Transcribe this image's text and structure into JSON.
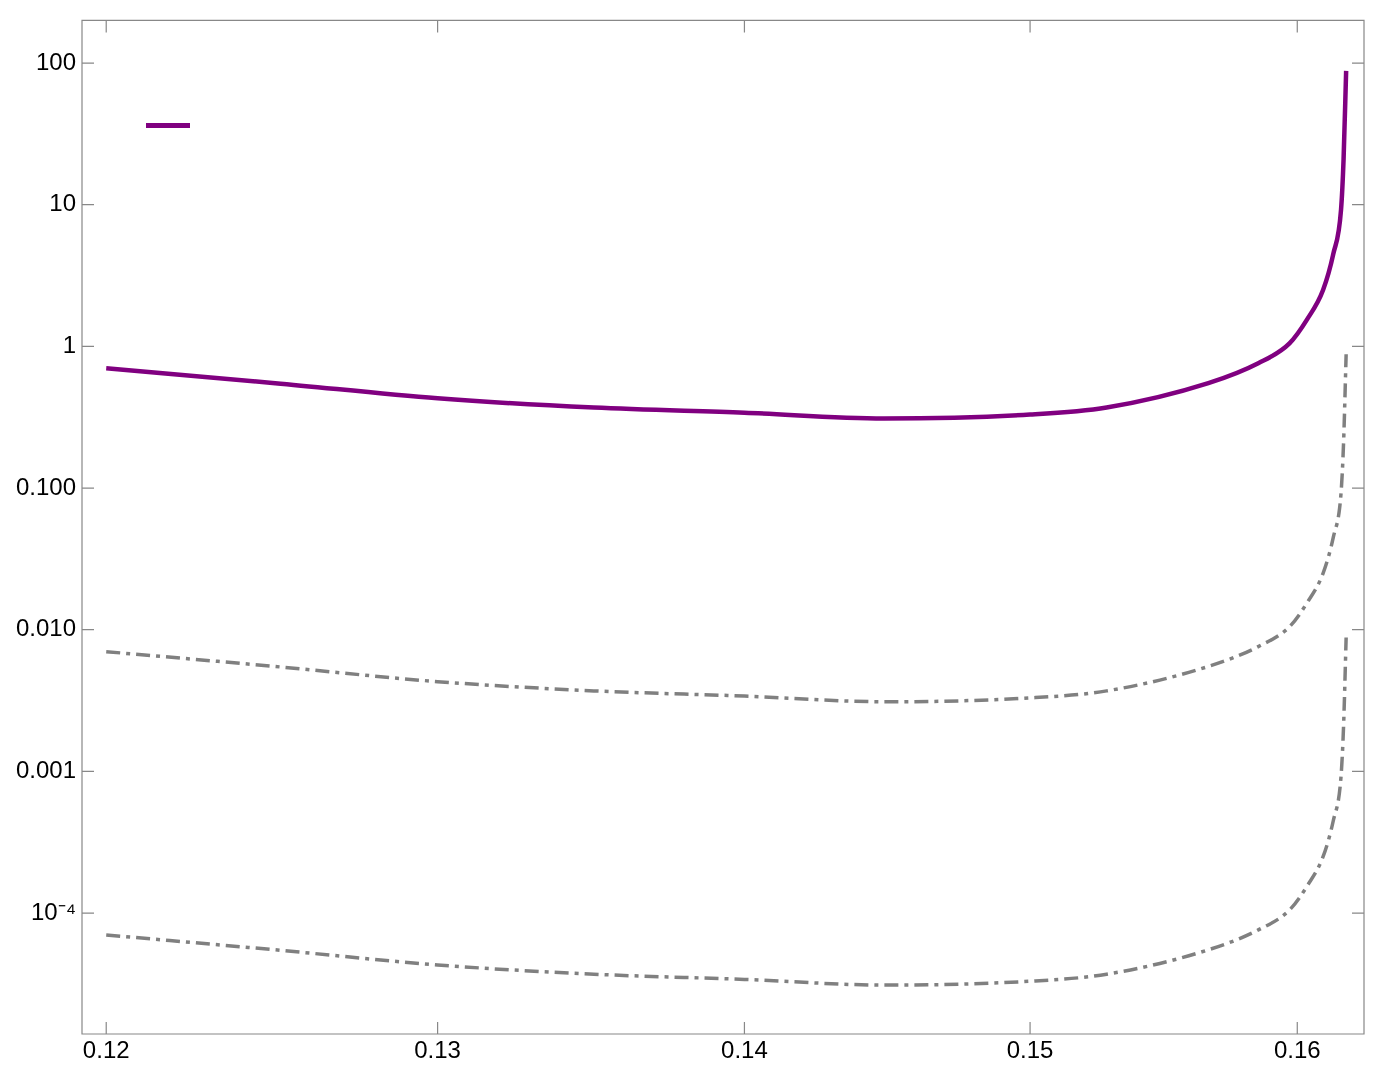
{
  "chart_data": {
    "type": "line",
    "log": "xy",
    "xlim": [
      0.1193,
      0.1626
    ],
    "xticks": [
      0.12,
      0.13,
      0.14,
      0.15,
      0.16
    ],
    "ylim": [
      1.4e-05,
      200
    ],
    "yticks": [
      100,
      10,
      1,
      {
        "value": 0.1,
        "label": "0.100"
      },
      {
        "value": 0.01,
        "label": "0.010"
      },
      {
        "value": 0.001,
        "label": "0.001"
      },
      {
        "value": 0.0001,
        "label": "10⁻⁴"
      }
    ],
    "grid": false,
    "series": [
      {
        "color": "#800080",
        "line_style": "solid",
        "x": [
          0.12,
          0.125,
          0.13,
          0.135,
          0.14,
          0.1448,
          0.15,
          0.1528,
          0.1566,
          0.1585,
          0.1597,
          0.1604,
          0.161,
          0.1614,
          0.1617,
          0.1618,
          0.1619
        ],
        "values": [
          0.7,
          0.55,
          0.43,
          0.37,
          0.34,
          0.31,
          0.33,
          0.37,
          0.55,
          0.76,
          1.05,
          1.57,
          2.5,
          4.5,
          9.2,
          21,
          88
        ]
      },
      {
        "color": "#808080",
        "line_style": "dashed",
        "x": [
          0.12,
          0.125,
          0.13,
          0.135,
          0.14,
          0.1448,
          0.15,
          0.1528,
          0.1566,
          0.1585,
          0.1597,
          0.1604,
          0.161,
          0.1614,
          0.1617,
          0.1618,
          0.1619
        ],
        "values": [
          0.007,
          0.0055,
          0.0043,
          0.0037,
          0.0034,
          0.0031,
          0.0033,
          0.0037,
          0.0055,
          0.0076,
          0.0105,
          0.0157,
          0.025,
          0.045,
          0.092,
          0.21,
          0.88
        ]
      },
      {
        "color": "#808080",
        "line_style": "dashed",
        "x": [
          0.12,
          0.125,
          0.13,
          0.135,
          0.14,
          0.1448,
          0.15,
          0.1528,
          0.1566,
          0.1585,
          0.1597,
          0.1604,
          0.161,
          0.1614,
          0.1617,
          0.1618,
          0.1619
        ],
        "values": [
          7e-05,
          5.5e-05,
          4.3e-05,
          3.7e-05,
          3.4e-05,
          3.1e-05,
          3.3e-05,
          3.7e-05,
          5.5e-05,
          7.6e-05,
          0.000105,
          0.000157,
          0.00025,
          0.00045,
          0.00092,
          0.0021,
          0.0088
        ]
      }
    ]
  }
}
